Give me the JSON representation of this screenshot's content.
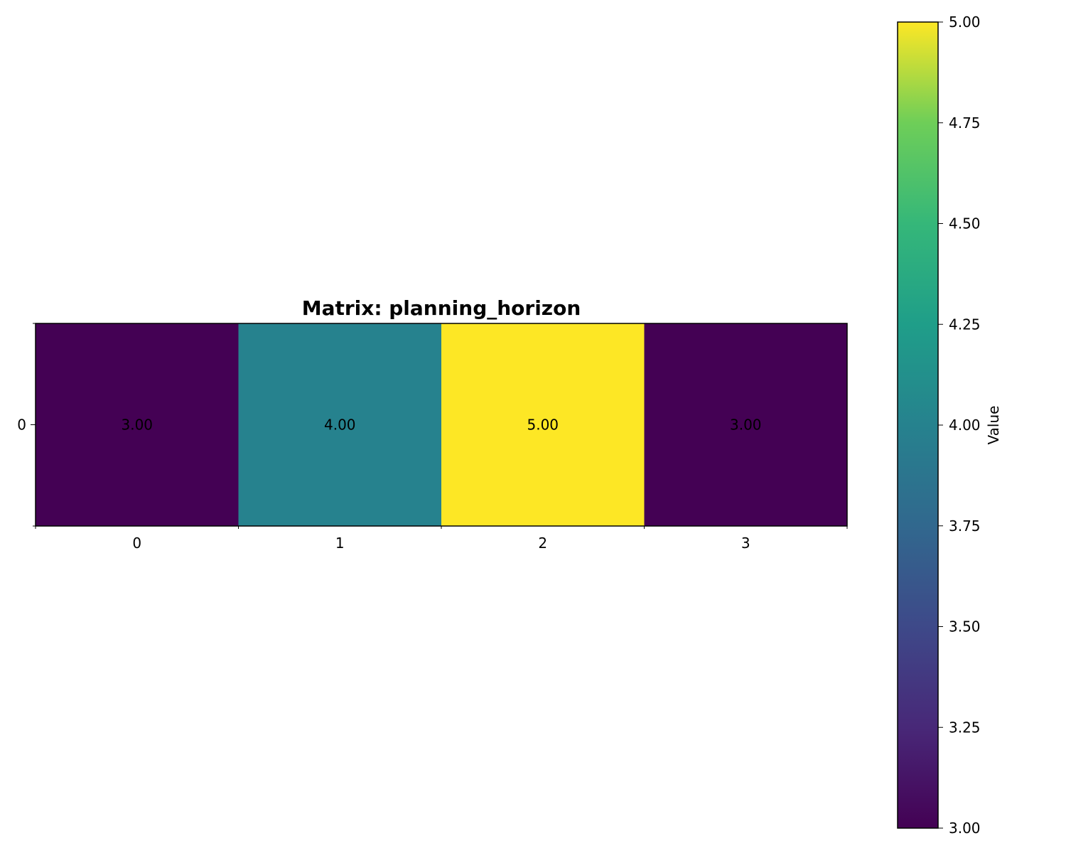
{
  "chart_data": {
    "type": "heatmap",
    "title": "Matrix: planning_horizon",
    "rows": [
      "0"
    ],
    "columns": [
      "0",
      "1",
      "2",
      "3"
    ],
    "values": [
      [
        3.0,
        4.0,
        5.0,
        3.0
      ]
    ],
    "value_labels": [
      [
        "3.00",
        "4.00",
        "5.00",
        "3.00"
      ]
    ],
    "colormap": "viridis",
    "vmin": 3.0,
    "vmax": 5.0,
    "colorbar": {
      "label": "Value",
      "ticks": [
        "3.00",
        "3.25",
        "3.50",
        "3.75",
        "4.00",
        "4.25",
        "4.50",
        "4.75",
        "5.00"
      ],
      "tick_values": [
        3.0,
        3.25,
        3.5,
        3.75,
        4.0,
        4.25,
        4.5,
        4.75,
        5.0
      ]
    }
  }
}
